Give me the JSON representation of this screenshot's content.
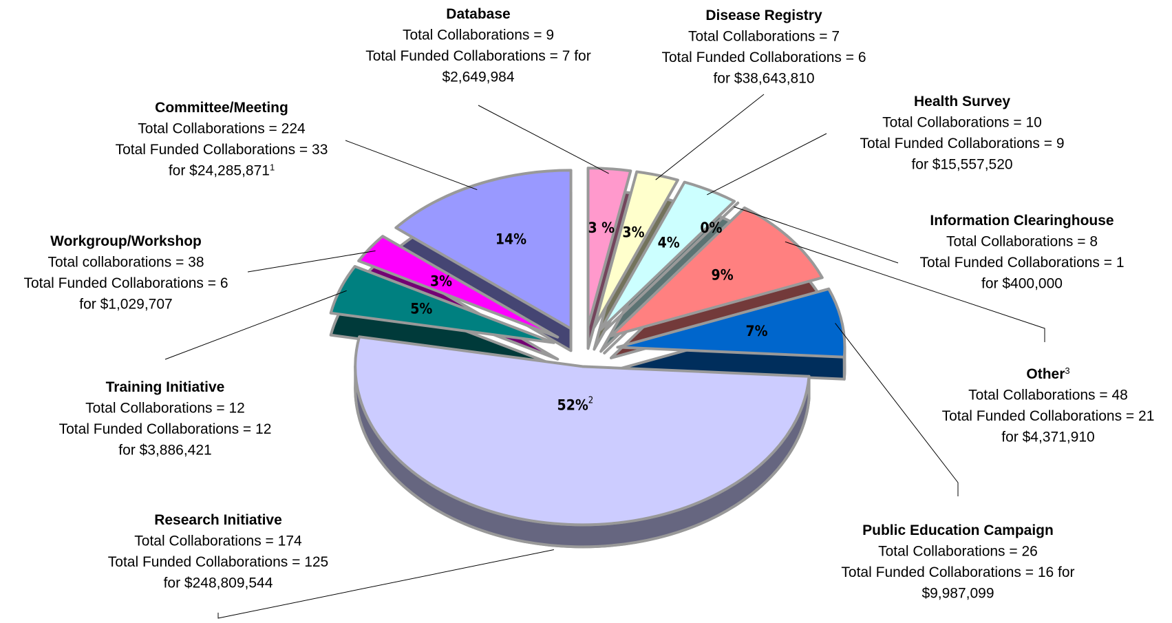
{
  "chart_data": {
    "type": "pie",
    "categories": [
      "Database",
      "Disease Registry",
      "Health Survey",
      "Information Clearinghouse",
      "Other",
      "Public Education Campaign",
      "Research Initiative",
      "Training Initiative",
      "Workgroup/Workshop",
      "Committee/Meeting"
    ],
    "values": [
      3,
      3,
      4,
      0,
      9,
      7,
      52,
      5,
      3,
      14
    ],
    "value_labels": [
      "3 %",
      "3%",
      "4%",
      "0%",
      "9%",
      "7%",
      "52%",
      "5%",
      "3%",
      "14%"
    ],
    "colors": [
      "#ff99cc",
      "#ffffcc",
      "#ccffff",
      "#996633",
      "#ff8080",
      "#0066cc",
      "#ccccff",
      "#008080",
      "#ff00ff",
      "#9999ff"
    ],
    "details": [
      {
        "lines": [
          "Total Collaborations = 9",
          "Total Funded Collaborations = 7   for",
          "$2,649,984"
        ]
      },
      {
        "lines": [
          "Total Collaborations = 7",
          "Total Funded Collaborations = 6",
          "for $38,643,810"
        ]
      },
      {
        "lines": [
          "Total Collaborations = 10",
          "Total Funded Collaborations = 9",
          "for $15,557,520"
        ]
      },
      {
        "lines": [
          "Total Collaborations = 8",
          "Total Funded Collaborations = 1",
          "for $400,000"
        ]
      },
      {
        "lines": [
          "Total Collaborations = 48",
          "Total Funded Collaborations = 21",
          "for $4,371,910"
        ],
        "title_note": "3"
      },
      {
        "lines": [
          "Total Collaborations = 26",
          "Total Funded Collaborations = 16 for",
          "$9,987,099"
        ]
      },
      {
        "lines": [
          "Total Collaborations = 174",
          "Total Funded Collaborations = 125",
          "for $248,809,544"
        ],
        "value_note": "2"
      },
      {
        "lines": [
          "Total Collaborations = 12",
          "Total Funded Collaborations = 12",
          "for $3,886,421"
        ]
      },
      {
        "lines": [
          "Total collaborations = 38",
          "Total Funded Collaborations = 6",
          "for $1,029,707"
        ]
      },
      {
        "lines": [
          "Total Collaborations = 224",
          "Total Funded Collaborations = 33",
          "for $24,285,871"
        ],
        "line_note": "1"
      }
    ]
  }
}
